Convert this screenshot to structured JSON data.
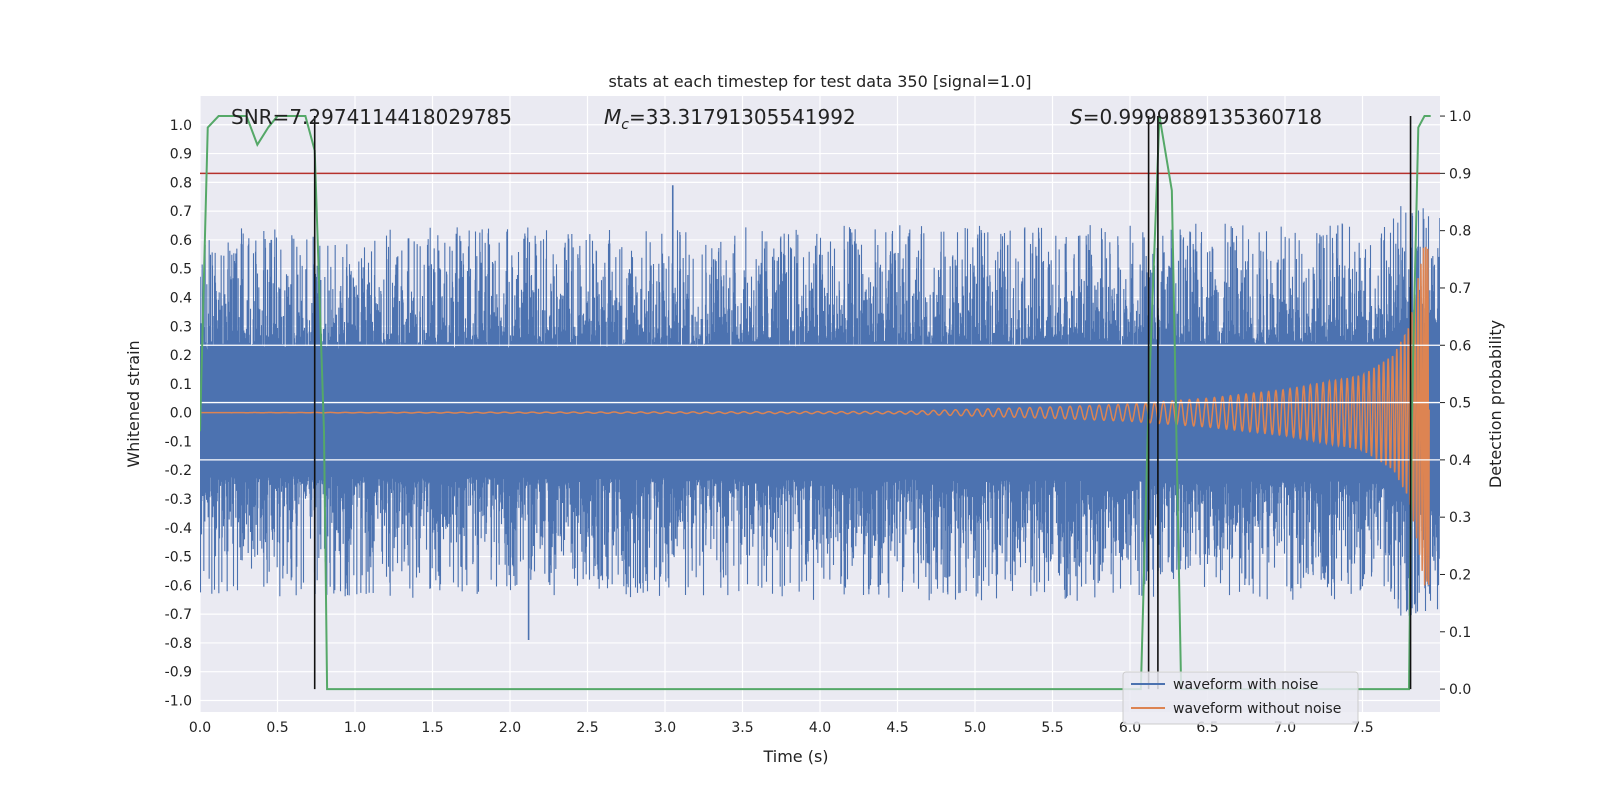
{
  "chart_data": {
    "type": "line",
    "title": "stats at each timestep for test data 350 [signal=1.0]",
    "xlabel": "Time (s)",
    "ylabel": "Whitened strain",
    "y2label": "Detection probability",
    "xlim": [
      0.0,
      8.0
    ],
    "ylim": [
      -1.04,
      1.1
    ],
    "y2lim": [
      -0.04,
      1.035
    ],
    "grid": true,
    "legend_position": "lower-right",
    "x_ticks": [
      "0.0",
      "0.5",
      "1.0",
      "1.5",
      "2.0",
      "2.5",
      "3.0",
      "3.5",
      "4.0",
      "4.5",
      "5.0",
      "5.5",
      "6.0",
      "6.5",
      "7.0",
      "7.5"
    ],
    "y_ticks": [
      "1.0",
      "0.9",
      "0.8",
      "0.7",
      "0.6",
      "0.5",
      "0.4",
      "0.3",
      "0.2",
      "0.1",
      "0.0",
      "-0.1",
      "-0.2",
      "-0.3",
      "-0.4",
      "-0.5",
      "-0.6",
      "-0.7",
      "-0.8",
      "-0.9",
      "-1.0"
    ],
    "y2_ticks": [
      "1.0",
      "0.9",
      "0.8",
      "0.7",
      "0.6",
      "0.5",
      "0.4",
      "0.3",
      "0.2",
      "0.1",
      "0.0"
    ],
    "annotations": {
      "snr_prefix": "SNR=",
      "snr": "7.2974114418029785",
      "mc_symbol": "M",
      "mc_sub": "c",
      "mc_eq": "=",
      "mc": "33.31791305541992",
      "s_symbol": "S",
      "s_eq": "=",
      "s": "0.9999889135360718"
    },
    "threshold": {
      "axis": "detection probability",
      "value": 0.9,
      "color": "#b5312c"
    },
    "vertical_markers_x": [
      0.74,
      6.12,
      6.18,
      7.81
    ],
    "series": [
      {
        "name": "waveform with noise",
        "color": "#4c72b0",
        "envelope_x": [
          0.0,
          7.6,
          7.8,
          7.95
        ],
        "envelope_strain": [
          0.22,
          0.24,
          0.32,
          0.3
        ],
        "spike_max": [
          0.6,
          0.79,
          -0.79
        ]
      },
      {
        "name": "waveform without noise",
        "color": "#dd8452",
        "amplitude_envelope_x": [
          0.0,
          4.5,
          5.5,
          6.0,
          6.5,
          7.0,
          7.5,
          7.7,
          7.8,
          7.87,
          7.9
        ],
        "amplitude_envelope": [
          0.0,
          0.004,
          0.02,
          0.03,
          0.05,
          0.08,
          0.13,
          0.2,
          0.3,
          0.5,
          0.6
        ]
      },
      {
        "name": "",
        "axis": "detection probability",
        "color": "#55a868",
        "x": [
          0.0,
          0.05,
          0.12,
          0.2,
          0.3,
          0.37,
          0.44,
          0.5,
          0.57,
          0.62,
          0.68,
          0.74,
          0.8,
          0.82,
          6.0,
          6.07,
          6.12,
          6.19,
          6.27,
          6.33,
          7.8,
          7.82,
          7.86,
          7.9,
          7.94
        ],
        "values": [
          0.45,
          0.98,
          1.0,
          1.0,
          1.0,
          0.95,
          0.98,
          1.0,
          1.0,
          1.0,
          1.0,
          0.94,
          0.45,
          0.0,
          0.0,
          0.0,
          0.5,
          1.0,
          0.87,
          0.0,
          0.0,
          0.5,
          0.98,
          1.0,
          1.0
        ]
      }
    ],
    "legend": [
      "waveform with noise",
      "waveform without noise"
    ]
  }
}
